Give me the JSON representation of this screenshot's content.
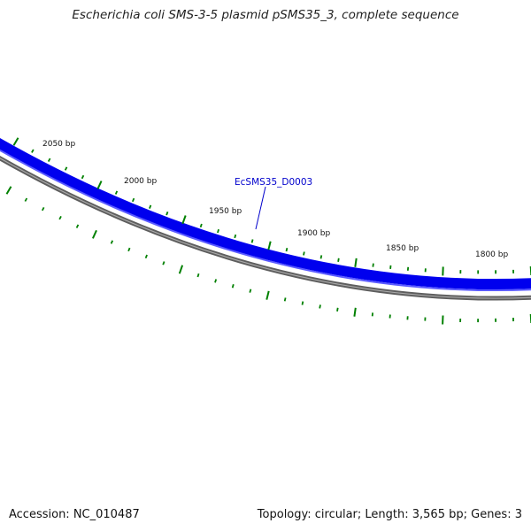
{
  "header": {
    "title": "Escherichia coli SMS-3-5 plasmid pSMS35_3, complete sequence"
  },
  "footer": {
    "accession": "Accession: NC_010487",
    "summary": "Topology: circular; Length: 3,565 bp; Genes: 3"
  },
  "map": {
    "colors": {
      "gene_track": "#0000ee",
      "gene_track_highlight": "#5a5aff",
      "backbone": "#777777",
      "tick": "#008000",
      "gene_label": "#0000cc"
    },
    "scale_labels": [
      {
        "bp": 2050,
        "text": "2050 bp"
      },
      {
        "bp": 2000,
        "text": "2000 bp"
      },
      {
        "bp": 1950,
        "text": "1950 bp"
      },
      {
        "bp": 1900,
        "text": "1900 bp"
      },
      {
        "bp": 1850,
        "text": "1850 bp"
      },
      {
        "bp": 1800,
        "text": "1800 bp"
      }
    ],
    "genes": [
      {
        "name": "EcSMS35_D0003"
      }
    ]
  }
}
